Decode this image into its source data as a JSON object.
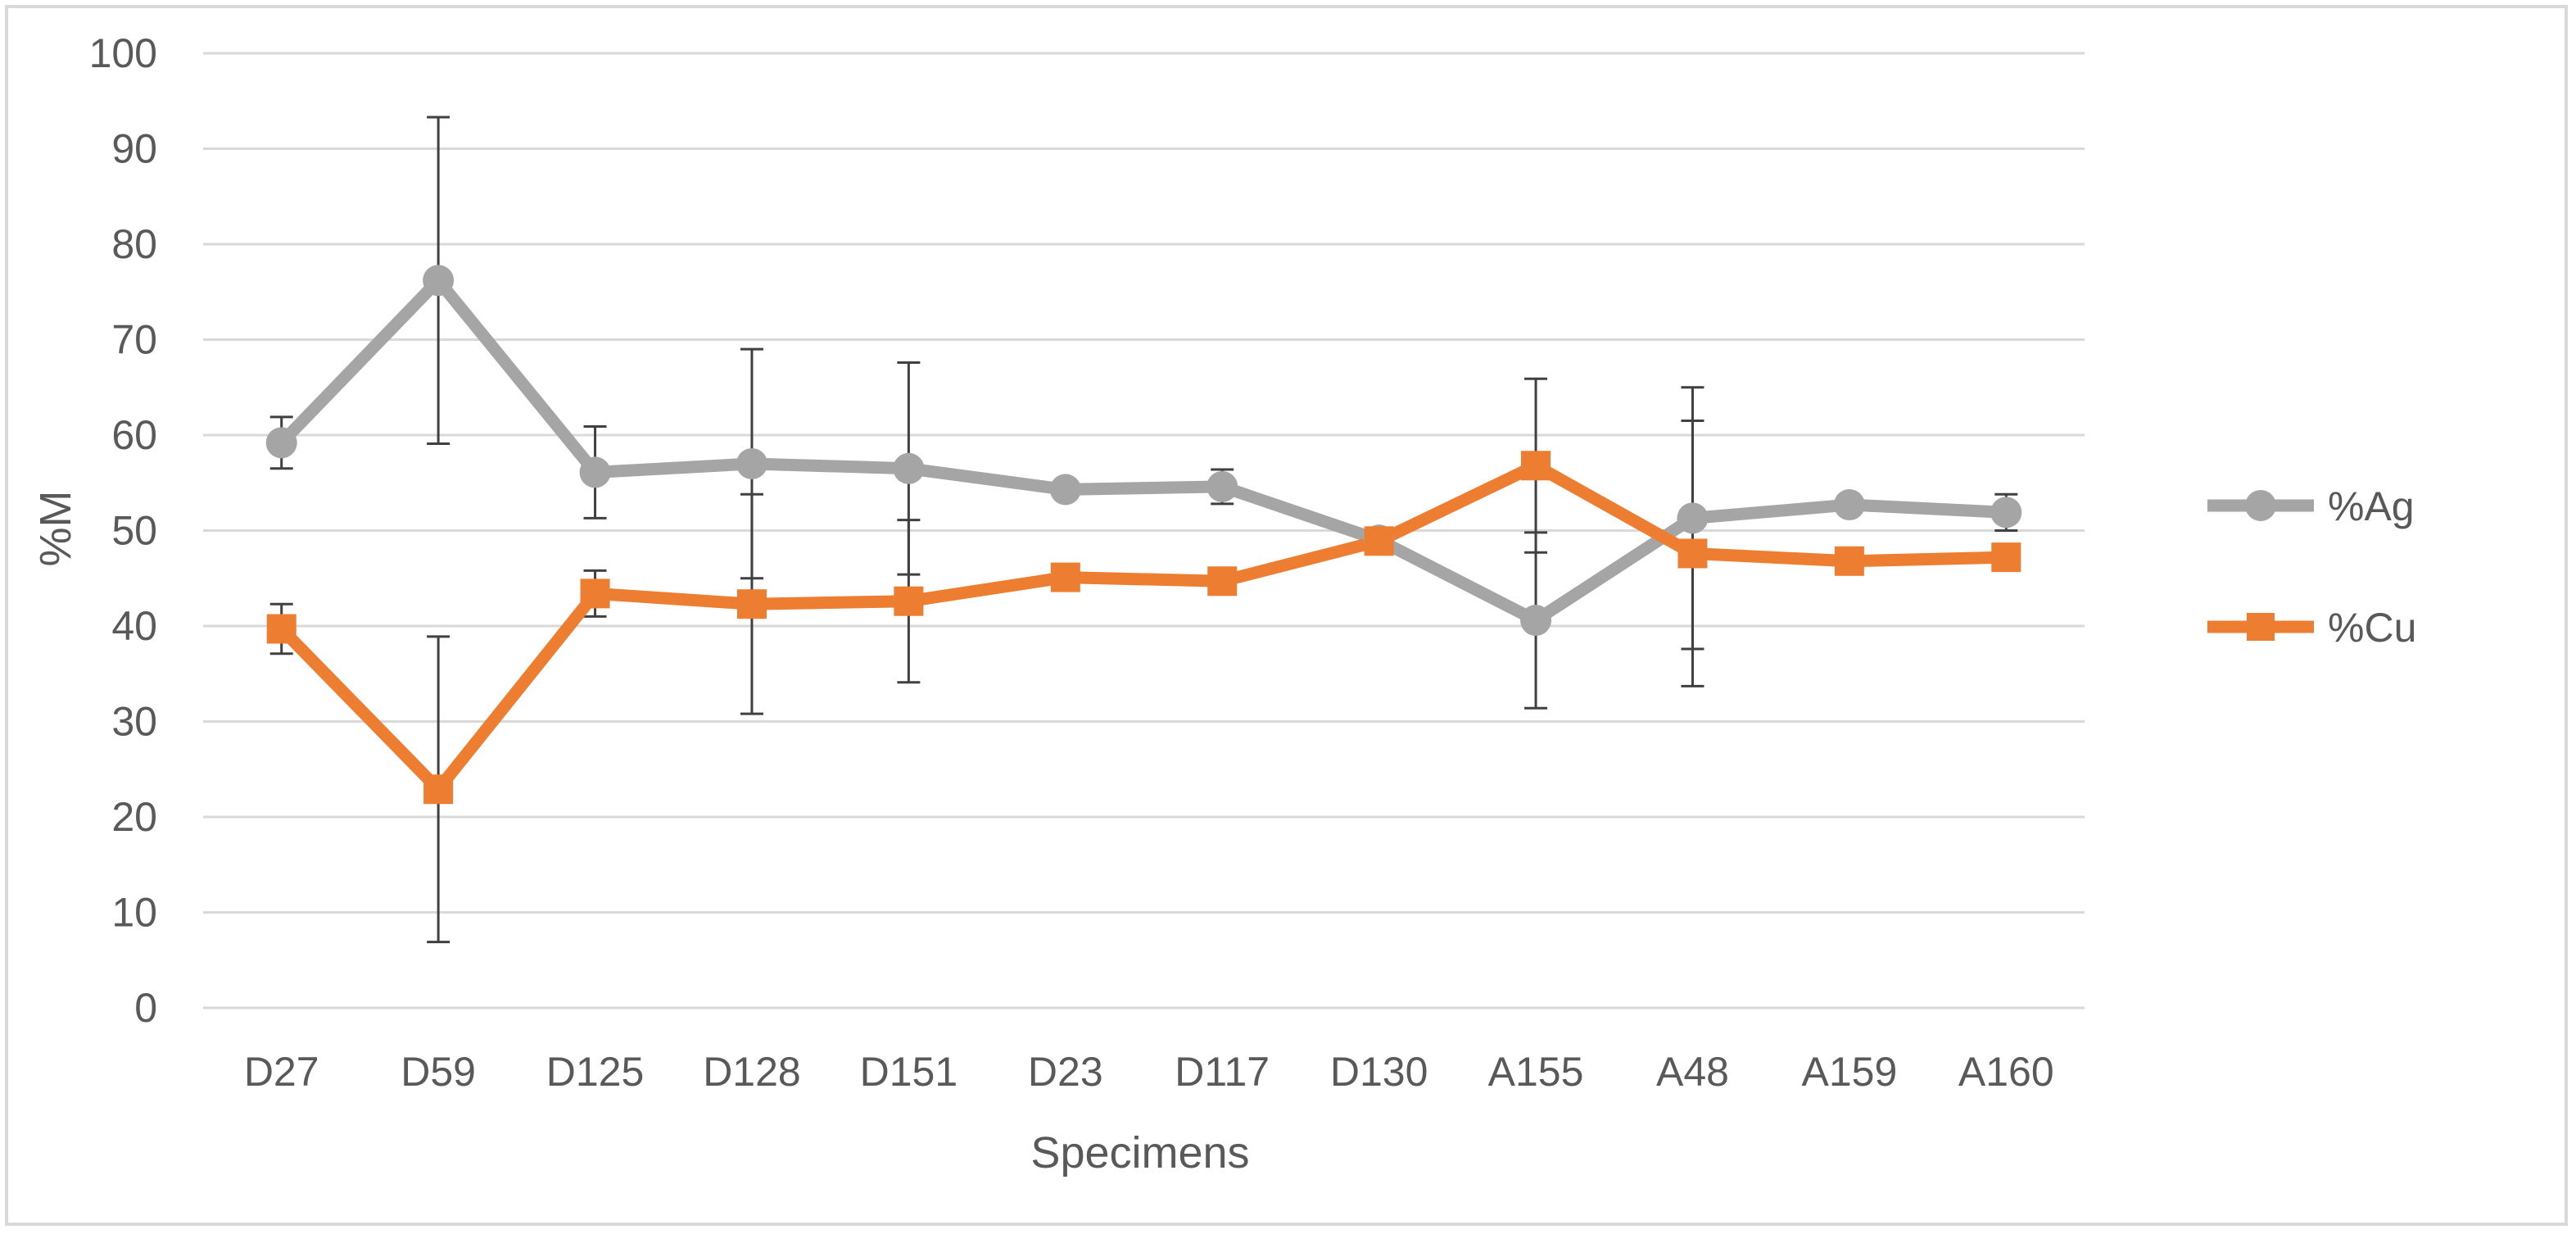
{
  "chart_data": {
    "type": "line",
    "title": "",
    "xlabel": "Specimens",
    "ylabel": "%M",
    "ylim": [
      0,
      100
    ],
    "yticks": [
      0,
      10,
      20,
      30,
      40,
      50,
      60,
      70,
      80,
      90,
      100
    ],
    "grid": "horizontal",
    "legend_position": "right",
    "categories": [
      "D27",
      "D59",
      "D125",
      "D128",
      "D151",
      "D23",
      "D117",
      "D130",
      "A155",
      "A48",
      "A159",
      "A160"
    ],
    "series": [
      {
        "name": "%Ag",
        "color": "#a5a5a5",
        "marker": "circle",
        "values": [
          59.2,
          76.2,
          56.1,
          57.0,
          56.5,
          54.3,
          54.6,
          49.0,
          40.6,
          51.3,
          52.7,
          51.9
        ],
        "error": [
          2.7,
          17.1,
          4.8,
          12.0,
          11.1,
          null,
          1.8,
          null,
          9.2,
          13.7,
          null,
          1.9
        ]
      },
      {
        "name": "%Cu",
        "color": "#ed7d31",
        "marker": "square",
        "values": [
          39.7,
          22.9,
          43.4,
          42.3,
          42.6,
          45.1,
          44.7,
          48.9,
          56.8,
          47.6,
          46.8,
          47.2
        ],
        "error": [
          2.6,
          16.0,
          2.4,
          11.5,
          8.5,
          null,
          null,
          null,
          9.1,
          13.9,
          null,
          null
        ]
      }
    ]
  }
}
